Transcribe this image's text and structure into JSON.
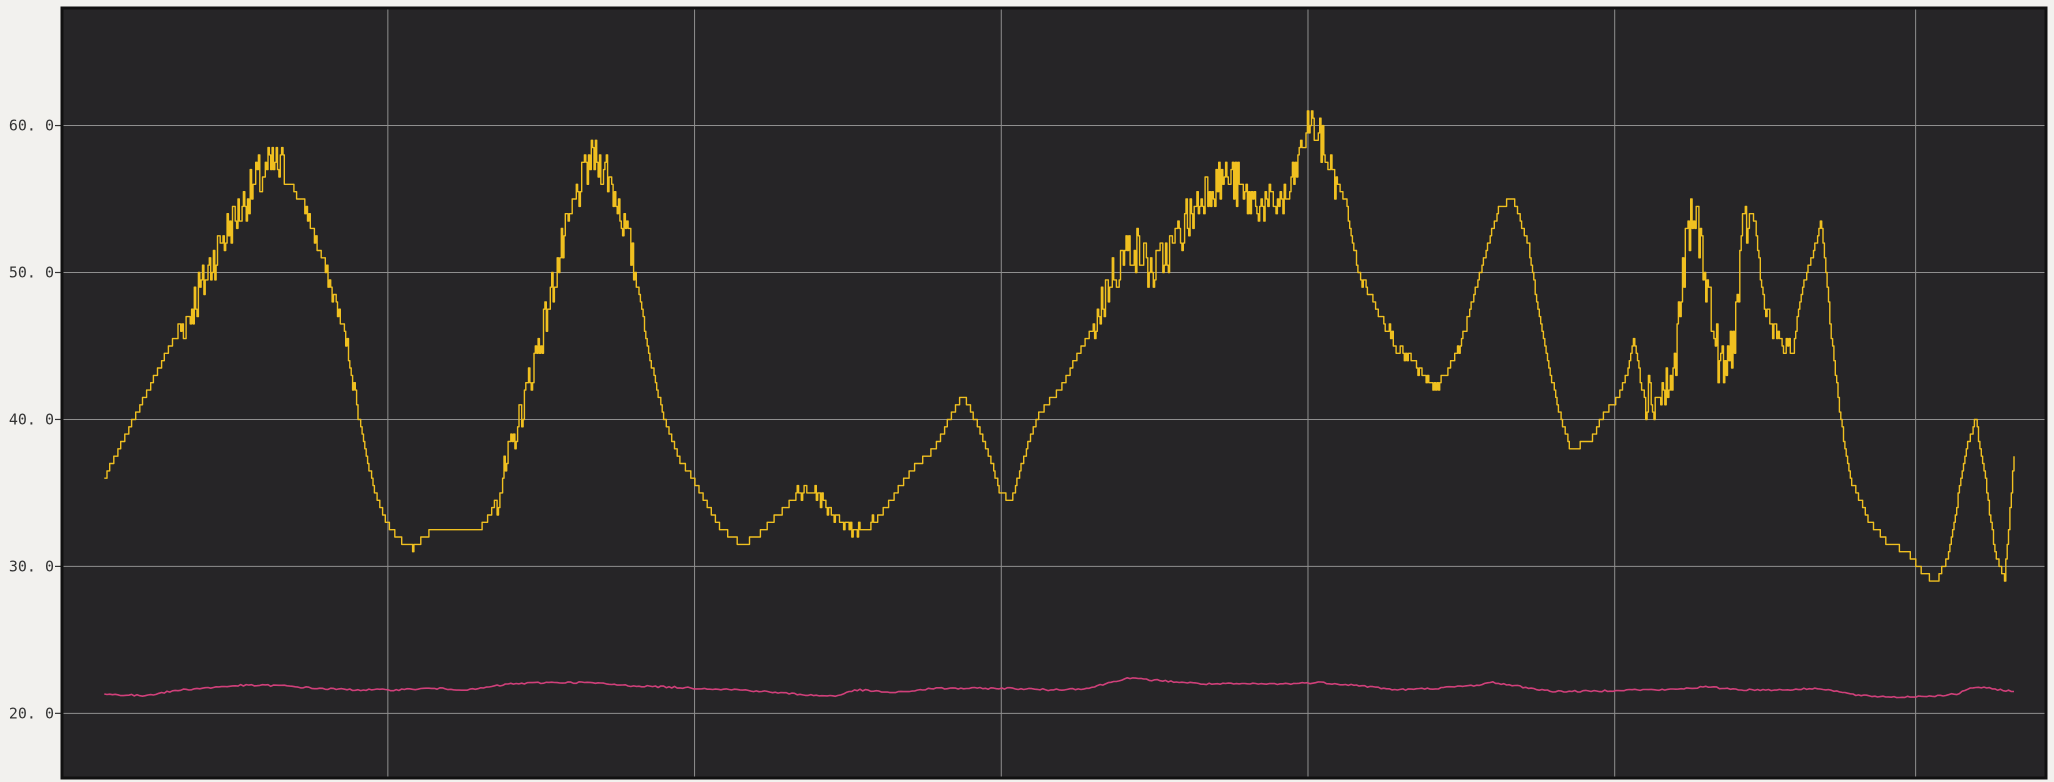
{
  "chart_data": {
    "type": "line",
    "title": "",
    "xlabel": "",
    "ylabel": "",
    "ylim": [
      15.6,
      68.0
    ],
    "yticks": [
      20,
      30,
      40,
      50,
      60
    ],
    "ytick_labels": [
      "20. 0",
      "30. 0",
      "40. 0",
      "50. 0",
      "60. 0"
    ],
    "xlim": [
      0,
      100
    ],
    "x_gridlines": [
      15.7,
      31.6,
      47.5,
      63.4,
      79.3,
      94.9
    ],
    "grid": true,
    "background": "#262527",
    "gridline_color": "#8f8f8f",
    "frame_color": "#111111",
    "series": [
      {
        "color": "#f0c020",
        "noise": [
          [
            4.7,
            10.5,
            1.6
          ],
          [
            10.5,
            14.2,
            0.6
          ],
          [
            21.3,
            28.6,
            1.4
          ],
          [
            36.9,
            41.1,
            0.5
          ],
          [
            52.3,
            60.7,
            1.6
          ],
          [
            60.7,
            64.8,
            1.4
          ],
          [
            65.1,
            71.7,
            0.4
          ],
          [
            80.8,
            86.2,
            1.8
          ],
          [
            86.2,
            88.6,
            0.6
          ]
        ],
        "points": [
          [
            1.0,
            36.0
          ],
          [
            2.5,
            40.0
          ],
          [
            4.0,
            44.0
          ],
          [
            5.5,
            47.5
          ],
          [
            7.0,
            52.0
          ],
          [
            8.5,
            55.5
          ],
          [
            9.8,
            57.5
          ],
          [
            10.3,
            57.0
          ],
          [
            11.5,
            54.0
          ],
          [
            12.5,
            50.0
          ],
          [
            13.5,
            45.5
          ],
          [
            14.5,
            38.0
          ],
          [
            15.0,
            35.0
          ],
          [
            15.6,
            33.0
          ],
          [
            16.3,
            31.8
          ],
          [
            17.0,
            31.2
          ],
          [
            17.8,
            32.3
          ],
          [
            19.0,
            32.3
          ],
          [
            20.3,
            32.3
          ],
          [
            21.0,
            33.5
          ],
          [
            21.7,
            36.0
          ],
          [
            22.5,
            40.0
          ],
          [
            23.5,
            45.0
          ],
          [
            24.5,
            50.5
          ],
          [
            25.5,
            55.5
          ],
          [
            26.3,
            58.0
          ],
          [
            27.0,
            57.0
          ],
          [
            27.8,
            54.0
          ],
          [
            28.5,
            50.0
          ],
          [
            29.3,
            44.0
          ],
          [
            30.0,
            40.0
          ],
          [
            30.7,
            37.5
          ],
          [
            31.5,
            36.0
          ],
          [
            32.3,
            34.0
          ],
          [
            33.0,
            32.5
          ],
          [
            34.0,
            31.5
          ],
          [
            34.8,
            32.0
          ],
          [
            35.5,
            33.0
          ],
          [
            36.3,
            34.0
          ],
          [
            37.0,
            35.0
          ],
          [
            37.8,
            35.2
          ],
          [
            38.5,
            34.0
          ],
          [
            39.3,
            33.0
          ],
          [
            40.0,
            32.5
          ],
          [
            41.0,
            33.0
          ],
          [
            42.0,
            35.0
          ],
          [
            43.0,
            36.8
          ],
          [
            44.0,
            38.0
          ],
          [
            44.8,
            40.0
          ],
          [
            45.5,
            41.8
          ],
          [
            46.3,
            39.5
          ],
          [
            47.0,
            37.0
          ],
          [
            47.4,
            35.0
          ],
          [
            48.0,
            34.5
          ],
          [
            48.8,
            38.0
          ],
          [
            49.5,
            40.5
          ],
          [
            50.5,
            42.0
          ],
          [
            51.3,
            44.0
          ],
          [
            52.3,
            46.5
          ],
          [
            53.3,
            50.0
          ],
          [
            54.3,
            52.0
          ],
          [
            55.3,
            50.0
          ],
          [
            56.3,
            51.5
          ],
          [
            57.3,
            54.0
          ],
          [
            58.3,
            56.0
          ],
          [
            59.3,
            56.5
          ],
          [
            60.3,
            55.0
          ],
          [
            61.3,
            54.5
          ],
          [
            62.3,
            55.0
          ],
          [
            63.0,
            58.0
          ],
          [
            63.5,
            60.5
          ],
          [
            64.3,
            58.0
          ],
          [
            65.3,
            55.0
          ],
          [
            66.0,
            50.0
          ],
          [
            67.0,
            47.5
          ],
          [
            68.0,
            45.0
          ],
          [
            69.0,
            43.5
          ],
          [
            69.9,
            42.0
          ],
          [
            70.5,
            43.0
          ],
          [
            71.3,
            45.0
          ],
          [
            72.3,
            50.0
          ],
          [
            73.3,
            54.5
          ],
          [
            74.0,
            55.0
          ],
          [
            74.8,
            52.0
          ],
          [
            75.5,
            46.0
          ],
          [
            76.3,
            41.0
          ],
          [
            77.0,
            38.0
          ],
          [
            78.0,
            38.5
          ],
          [
            78.8,
            40.5
          ],
          [
            79.5,
            41.5
          ],
          [
            80.0,
            43.5
          ],
          [
            80.3,
            45.5
          ],
          [
            80.7,
            42.0
          ],
          [
            81.5,
            41.5
          ],
          [
            82.3,
            42.5
          ],
          [
            83.0,
            52.0
          ],
          [
            83.5,
            54.0
          ],
          [
            84.0,
            50.0
          ],
          [
            84.5,
            45.0
          ],
          [
            85.0,
            43.0
          ],
          [
            85.5,
            46.0
          ],
          [
            86.0,
            53.0
          ],
          [
            86.5,
            54.0
          ],
          [
            87.0,
            48.0
          ],
          [
            87.5,
            46.0
          ],
          [
            88.0,
            45.0
          ],
          [
            88.5,
            44.5
          ],
          [
            89.0,
            49.0
          ],
          [
            89.5,
            51.0
          ],
          [
            90.0,
            53.5
          ],
          [
            90.5,
            46.0
          ],
          [
            91.0,
            40.0
          ],
          [
            91.5,
            36.0
          ],
          [
            92.5,
            33.0
          ],
          [
            93.5,
            31.5
          ],
          [
            94.5,
            31.0
          ],
          [
            95.0,
            30.0
          ],
          [
            95.6,
            29.2
          ],
          [
            96.0,
            29.0
          ],
          [
            96.5,
            30.5
          ],
          [
            97.0,
            34.0
          ],
          [
            97.5,
            38.0
          ],
          [
            98.0,
            40.0
          ],
          [
            98.5,
            36.0
          ],
          [
            99.0,
            31.0
          ],
          [
            99.5,
            29.0
          ],
          [
            100.0,
            37.5
          ]
        ]
      },
      {
        "color": "#d0407a",
        "points": [
          [
            1.0,
            21.3
          ],
          [
            3.0,
            21.2
          ],
          [
            5.0,
            21.6
          ],
          [
            8.0,
            21.9
          ],
          [
            10.0,
            21.9
          ],
          [
            12.0,
            21.7
          ],
          [
            14.0,
            21.6
          ],
          [
            16.0,
            21.6
          ],
          [
            18.0,
            21.7
          ],
          [
            20.0,
            21.6
          ],
          [
            22.0,
            22.0
          ],
          [
            24.0,
            22.1
          ],
          [
            26.0,
            22.1
          ],
          [
            28.0,
            21.9
          ],
          [
            30.0,
            21.8
          ],
          [
            32.0,
            21.7
          ],
          [
            34.0,
            21.6
          ],
          [
            36.0,
            21.4
          ],
          [
            38.0,
            21.2
          ],
          [
            39.0,
            21.2
          ],
          [
            40.0,
            21.6
          ],
          [
            42.0,
            21.4
          ],
          [
            44.0,
            21.7
          ],
          [
            46.0,
            21.7
          ],
          [
            48.0,
            21.7
          ],
          [
            50.0,
            21.6
          ],
          [
            52.0,
            21.7
          ],
          [
            54.0,
            22.4
          ],
          [
            56.0,
            22.2
          ],
          [
            58.0,
            22.0
          ],
          [
            60.0,
            22.0
          ],
          [
            62.0,
            22.0
          ],
          [
            64.0,
            22.1
          ],
          [
            66.0,
            21.9
          ],
          [
            68.0,
            21.6
          ],
          [
            70.0,
            21.7
          ],
          [
            72.0,
            21.9
          ],
          [
            73.0,
            22.1
          ],
          [
            74.0,
            21.9
          ],
          [
            76.0,
            21.5
          ],
          [
            78.0,
            21.5
          ],
          [
            80.0,
            21.6
          ],
          [
            82.0,
            21.6
          ],
          [
            84.0,
            21.8
          ],
          [
            86.0,
            21.6
          ],
          [
            88.0,
            21.6
          ],
          [
            90.0,
            21.7
          ],
          [
            92.0,
            21.2
          ],
          [
            94.0,
            21.1
          ],
          [
            96.0,
            21.2
          ],
          [
            97.0,
            21.3
          ],
          [
            98.0,
            21.8
          ],
          [
            100.0,
            21.5
          ]
        ]
      }
    ]
  }
}
